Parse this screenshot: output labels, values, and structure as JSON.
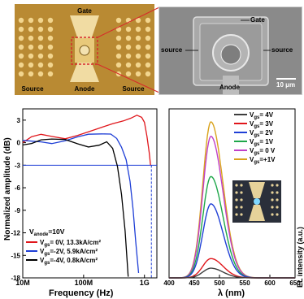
{
  "micrograph_left": {
    "labels": {
      "gate": "Gate",
      "source_left": "Source",
      "anode": "Anode",
      "source_right": "Source"
    },
    "colors": {
      "background": "#c79a3c",
      "pad": "#efd08a",
      "channel": "#f6e7b8",
      "highlight": "#d8282a"
    }
  },
  "micrograph_right": {
    "labels": {
      "gate": "Gate",
      "source_left": "source",
      "source_right": "source",
      "anode": "Anode",
      "scale": "10 μm"
    },
    "colors": {
      "background": "#8e8e8e",
      "device": "#bdbdbd"
    }
  },
  "chart_data": [
    {
      "type": "line",
      "xscale": "log",
      "xlabel": "Frequency (Hz)",
      "ylabel": "Normalized amplitude (dB)",
      "xlim": [
        10000000,
        1600000000
      ],
      "ylim": [
        -18,
        4.5
      ],
      "xticks": [
        "10M",
        "100M",
        "1G"
      ],
      "yticks": [
        "3",
        "0",
        "-3",
        "-6",
        "-9",
        "-12",
        "-15",
        "-18"
      ],
      "reference_line": {
        "y": -3,
        "color": "#1f3fd6",
        "cutoff_x": 1300000000
      },
      "annotation": {
        "prefix": "V",
        "sub": "anode",
        "suffix": "=10V"
      },
      "series": [
        {
          "name_sub": "gs",
          "name": "= 0V, 13.3kA/cm²",
          "color": "#e0161b",
          "x": [
            10000000,
            14000000,
            20000000,
            30000000,
            50000000,
            80000000,
            120000000,
            200000000,
            300000000,
            450000000,
            600000000,
            750000000,
            900000000,
            1000000000,
            1100000000,
            1200000000,
            1260000000
          ],
          "y": [
            0.0,
            0.5,
            0.8,
            0.8,
            0.8,
            1.3,
            1.5,
            1.8,
            2.2,
            2.8,
            3.5,
            4.0,
            3.5,
            2.5,
            0.5,
            -1.5,
            -2.8
          ]
        },
        {
          "name_sub": "gs",
          "name": "=-2V, 5.9kA/cm²",
          "color": "#1f3fd6",
          "x": [
            10000000,
            14000000,
            20000000,
            30000000,
            50000000,
            80000000,
            120000000,
            200000000,
            280000000,
            350000000,
            420000000,
            500000000,
            580000000,
            650000000,
            720000000,
            800000000
          ],
          "y": [
            0.0,
            0.2,
            0.4,
            0.2,
            0.3,
            0.5,
            0.8,
            1.1,
            1.4,
            0.9,
            -0.5,
            -2.5,
            -5.5,
            -9.0,
            -13.0,
            -17.0
          ]
        },
        {
          "name_sub": "gs",
          "name": "=-4V, 0.8kA/cm²",
          "color": "#000000",
          "x": [
            10000000,
            14000000,
            20000000,
            30000000,
            50000000,
            80000000,
            120000000,
            180000000,
            240000000,
            300000000,
            360000000,
            420000000,
            480000000,
            540000000
          ],
          "y": [
            0.0,
            0.2,
            0.4,
            0.2,
            0.1,
            -0.2,
            -0.3,
            0.0,
            0.2,
            -1.0,
            -3.5,
            -7.0,
            -11.5,
            -17.5
          ]
        }
      ]
    },
    {
      "type": "line",
      "xlabel": "λ (nm)",
      "ylabel": "EL intensity (a.u.)",
      "xlim": [
        400,
        650
      ],
      "xticks": [
        "400",
        "450",
        "500",
        "550",
        "600",
        "650"
      ],
      "peak_wavelength": 483,
      "series": [
        {
          "name_sub": "gs",
          "name": "= 4V",
          "prefix": "V",
          "color": "#3d3d3d",
          "peak": 0.06
        },
        {
          "name_sub": "gs",
          "name": "= 3V",
          "prefix": "V",
          "color": "#e0161b",
          "peak": 0.12
        },
        {
          "name_sub": "gs",
          "name": "= 2V",
          "prefix": "V",
          "color": "#1f3fd6",
          "peak": 0.46
        },
        {
          "name_sub": "gs",
          "name": "= 1V",
          "prefix": "V",
          "color": "#1fa74a",
          "peak": 0.63
        },
        {
          "name_sub": "gs",
          "name": "= 0 V",
          "prefix": "V",
          "color": "#c040c8",
          "peak": 0.88
        },
        {
          "name_sub": "gs",
          "name": "=+1V",
          "prefix": "V",
          "color": "#d9a21b",
          "peak": 0.97
        }
      ]
    }
  ]
}
